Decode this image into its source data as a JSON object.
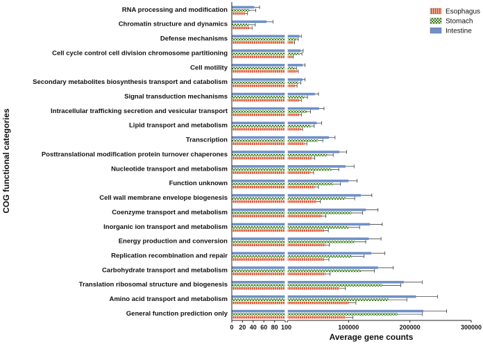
{
  "chart_data": {
    "type": "bar",
    "orientation": "horizontal",
    "xlabel": "Average gene counts",
    "ylabel": "COG functional categories",
    "x_break": {
      "left_range": [
        0,
        100
      ],
      "left_ticks": [
        0,
        20,
        40,
        60,
        80,
        100
      ],
      "right_range": [
        100,
        300000
      ],
      "right_ticks": [
        100,
        100000,
        200000,
        300000
      ],
      "right_tick_labels": [
        "100",
        "100000",
        "200000",
        "300000"
      ]
    },
    "legend_position": "top-right",
    "colors": {
      "Esophagus": "#e8643c",
      "Stomach": "#4a8a2e",
      "Intestine": "#6f8fc8"
    },
    "categories": [
      "RNA processing and modification",
      "Chromatin structure and dynamics",
      "Defense mechanisms",
      "Cell cycle control  cell division  chromosome partitioning",
      "Cell motility",
      "Secondary metabolites biosynthesis  transport and catabolism",
      "Signal transduction mechanisms",
      "Intracellular trafficking  secretion  and vesicular transport",
      "Lipid transport and metabolism",
      "Transcription",
      "Posttranslational modification  protein turnover  chaperones",
      "Nucleotide transport and metabolism",
      "Function unknown",
      "Cell wall membrane envelope biogenesis",
      "Coenzyme transport and metabolism",
      "Inorganic ion transport and metabolism",
      "Energy production and conversion",
      "Replication  recombination and repair",
      "Carbohydrate transport and metabolism",
      "Translation  ribosomal structure and biogenesis",
      "Amino acid transport and metabolism",
      "General function prediction only"
    ],
    "series": [
      {
        "name": "Esophagus",
        "values": [
          25,
          32,
          10000,
          8000,
          15000,
          13000,
          20000,
          20000,
          22000,
          28000,
          40000,
          38000,
          45000,
          48000,
          56000,
          60000,
          62000,
          60000,
          62000,
          85000,
          100000,
          95000
        ],
        "errors": [
          4,
          6,
          2000,
          2000,
          3000,
          3000,
          3000,
          3000,
          3000,
          4000,
          5000,
          5000,
          6000,
          6000,
          7000,
          7000,
          7000,
          8000,
          8000,
          10000,
          12000,
          12000
        ]
      },
      {
        "name": "Stomach",
        "values": [
          33,
          32,
          15000,
          20000,
          12000,
          18000,
          28000,
          32000,
          38000,
          50000,
          65000,
          72000,
          75000,
          95000,
          105000,
          100000,
          110000,
          105000,
          120000,
          155000,
          165000,
          180000
        ],
        "errors": [
          12,
          12,
          3000,
          4000,
          3000,
          4000,
          5000,
          6000,
          6000,
          8000,
          10000,
          12000,
          12000,
          15000,
          18000,
          18000,
          18000,
          20000,
          22000,
          30000,
          30000,
          40000
        ]
      },
      {
        "name": "Intestine",
        "values": [
          42,
          65,
          20000,
          22000,
          25000,
          25000,
          45000,
          52000,
          48000,
          68000,
          85000,
          95000,
          100000,
          120000,
          128000,
          135000,
          133000,
          137000,
          148000,
          190000,
          210000,
          222000
        ],
        "errors": [
          10,
          12,
          3000,
          4000,
          4000,
          4000,
          6000,
          8000,
          8000,
          10000,
          12000,
          14000,
          14000,
          18000,
          20000,
          20000,
          20000,
          22000,
          25000,
          30000,
          35000,
          38000
        ]
      }
    ]
  }
}
